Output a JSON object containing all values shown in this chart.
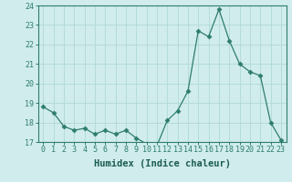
{
  "x": [
    0,
    1,
    2,
    3,
    4,
    5,
    6,
    7,
    8,
    9,
    10,
    11,
    12,
    13,
    14,
    15,
    16,
    17,
    18,
    19,
    20,
    21,
    22,
    23
  ],
  "y": [
    18.8,
    18.5,
    17.8,
    17.6,
    17.7,
    17.4,
    17.6,
    17.4,
    17.6,
    17.2,
    16.9,
    16.8,
    18.1,
    18.6,
    19.6,
    22.7,
    22.4,
    23.8,
    22.2,
    21.0,
    20.6,
    20.4,
    18.0,
    17.1
  ],
  "line_color": "#2e7d6e",
  "marker": "D",
  "marker_size": 2.5,
  "bg_color": "#d0ecec",
  "grid_color": "#b0d8d8",
  "xlabel": "Humidex (Indice chaleur)",
  "ylim": [
    17,
    24
  ],
  "xlim": [
    -0.5,
    23.5
  ],
  "xticks": [
    0,
    1,
    2,
    3,
    4,
    5,
    6,
    7,
    8,
    9,
    10,
    11,
    12,
    13,
    14,
    15,
    16,
    17,
    18,
    19,
    20,
    21,
    22,
    23
  ],
  "yticks": [
    17,
    18,
    19,
    20,
    21,
    22,
    23,
    24
  ],
  "tick_color": "#2e7d6e",
  "label_color": "#1a5c50",
  "spine_color": "#2e7d6e",
  "font_size": 6,
  "xlabel_font_size": 7.5
}
